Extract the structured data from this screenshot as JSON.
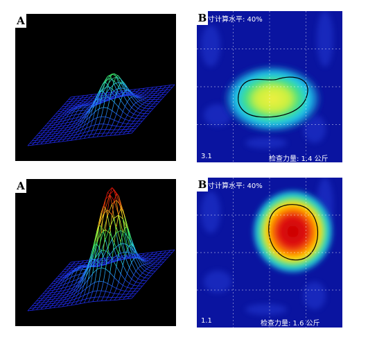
{
  "panels": [
    {
      "tag": "A",
      "kind": "wire",
      "amp": 0.45
    },
    {
      "tag": "B",
      "kind": "heat",
      "level": "寸计算水平: 40%",
      "value": "3.1",
      "weight": "检查力量: 1.4 公斤",
      "intensity": 0.55
    },
    {
      "tag": "A",
      "kind": "wire",
      "amp": 1.0
    },
    {
      "tag": "B",
      "kind": "heat",
      "level": "寸计算水平: 40%",
      "value": "1.1",
      "weight": "检查力量: 1.6 公斤",
      "intensity": 1.0
    }
  ]
}
